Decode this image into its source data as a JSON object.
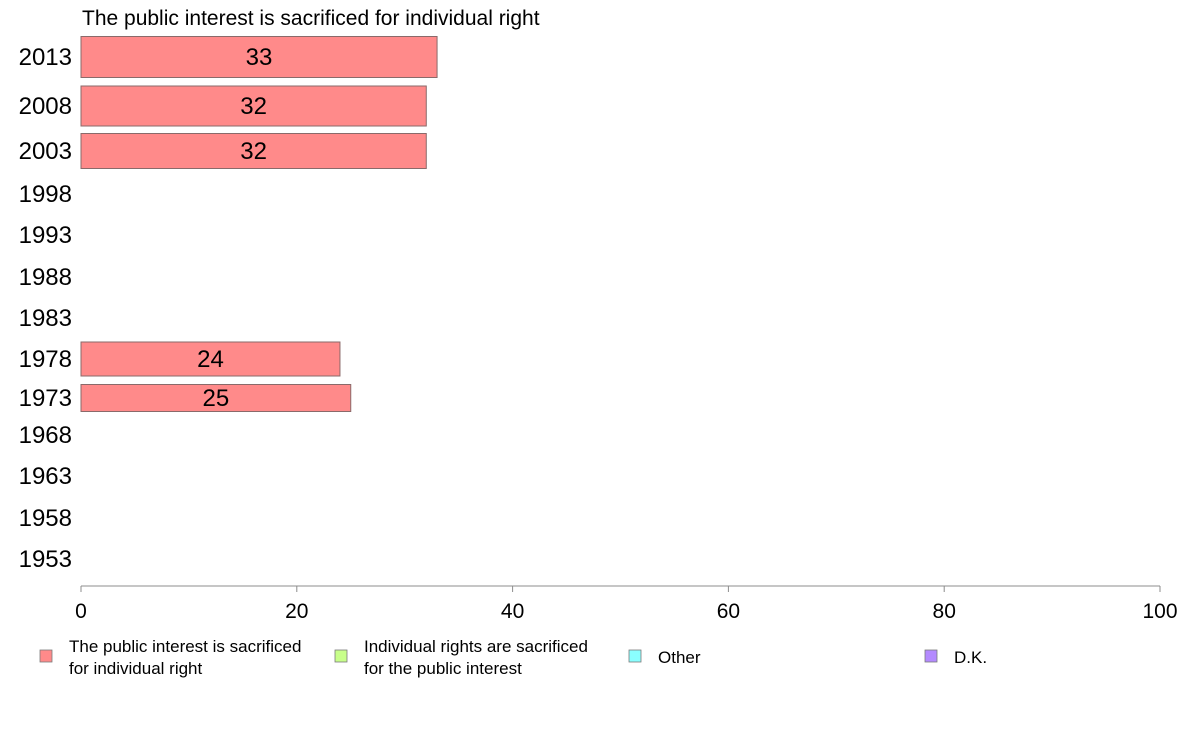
{
  "chart_data": {
    "type": "bar",
    "orientation": "horizontal",
    "title": "The public interest is sacrificed for individual right",
    "categories": [
      "2013",
      "2008",
      "2003",
      "1998",
      "1993",
      "1988",
      "1983",
      "1978",
      "1973",
      "1968",
      "1963",
      "1958",
      "1953"
    ],
    "series": [
      {
        "name": "The public interest is sacrificed for individual right",
        "values": [
          33,
          32,
          32,
          null,
          null,
          null,
          null,
          24,
          25,
          null,
          null,
          null,
          null
        ]
      },
      {
        "name": "Individual rights are sacrificed for the public interest",
        "values": [
          null,
          null,
          null,
          null,
          null,
          null,
          null,
          null,
          null,
          null,
          null,
          null,
          null
        ]
      },
      {
        "name": "Other",
        "values": [
          null,
          null,
          null,
          null,
          null,
          null,
          null,
          null,
          null,
          null,
          null,
          null,
          null
        ]
      },
      {
        "name": "D.K.",
        "values": [
          null,
          null,
          null,
          null,
          null,
          null,
          null,
          null,
          null,
          null,
          null,
          null,
          null
        ]
      }
    ],
    "xlim": [
      0,
      100
    ],
    "xticks": [
      0,
      20,
      40,
      60,
      80,
      100
    ],
    "grid": false,
    "legend_position": "bottom"
  },
  "legend": {
    "items": [
      {
        "line1": "The public interest is sacrificed",
        "line2": "for individual right",
        "color": "#ff8a8a"
      },
      {
        "line1": "Individual rights are sacrificed",
        "line2": "for the public interest",
        "color": "#c8ff8a"
      },
      {
        "line1": "Other",
        "line2": "",
        "color": "#8affff"
      },
      {
        "line1": "D.K.",
        "line2": "",
        "color": "#b48aff"
      }
    ]
  },
  "colors": {
    "bar_fill": "#ff8a8a",
    "bar_stroke": "#8a6a6a",
    "axis": "#8c8c8c"
  }
}
